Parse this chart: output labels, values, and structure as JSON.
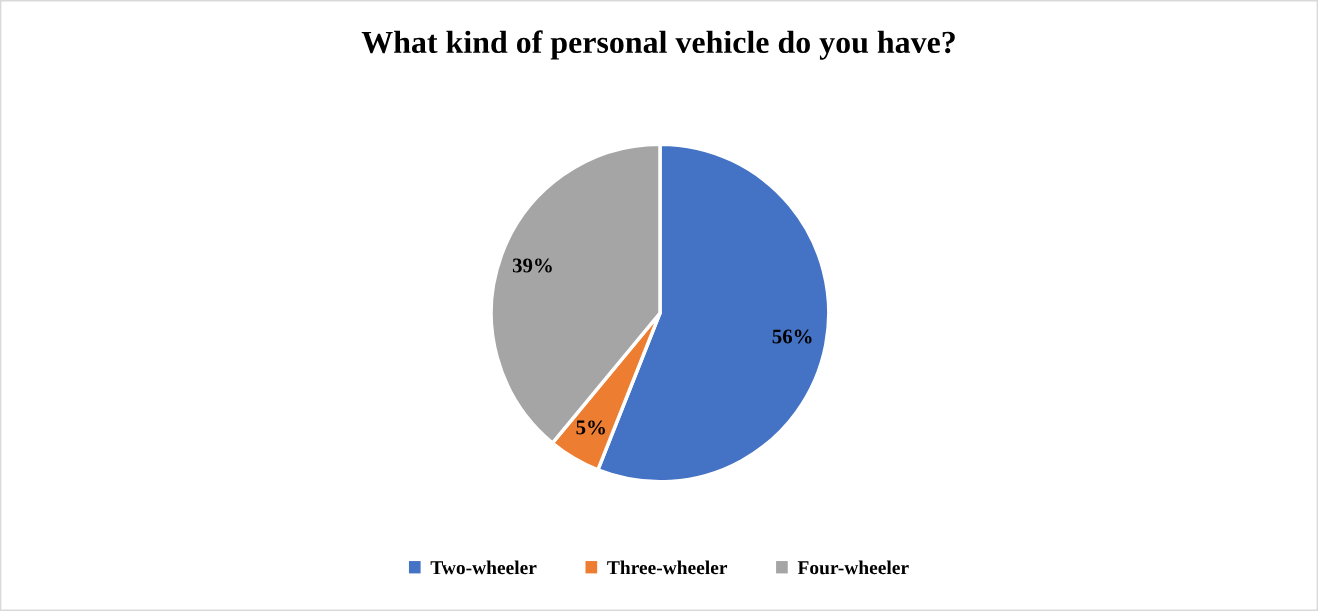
{
  "chart_data": {
    "type": "pie",
    "title": "What kind of personal vehicle do you have?",
    "categories": [
      "Two-wheeler",
      "Three-wheeler",
      "Four-wheeler"
    ],
    "values": [
      56,
      5,
      39
    ],
    "colors": [
      "#4472c4",
      "#ed7d31",
      "#a5a5a5"
    ],
    "value_labels": [
      "56%",
      "5%",
      "39%"
    ],
    "legend": "bottom"
  }
}
